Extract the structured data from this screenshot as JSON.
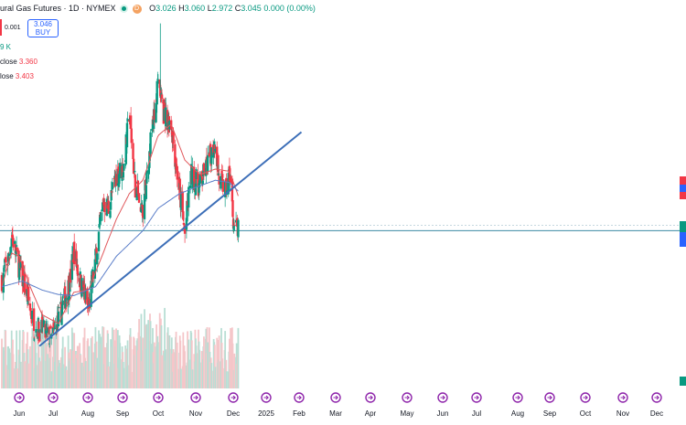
{
  "legend": {
    "title": "ural Gas Futures · 1D · NYMEX",
    "ohlc": [
      {
        "k": "O",
        "v": "3.026"
      },
      {
        "k": "H",
        "v": "3.060"
      },
      {
        "k": "L",
        "v": "2.972"
      },
      {
        "k": "C",
        "v": "3.045"
      }
    ],
    "change": "0.000 (0.00%)",
    "d_badge": "D"
  },
  "trade": {
    "spread": "0.001",
    "buy_price": "3.046",
    "buy_label": "BUY"
  },
  "volume_label": "9 K",
  "ma_rows": [
    {
      "name": "close",
      "value": "3.360",
      "color": "#f23645"
    },
    {
      "name": "lose",
      "value": "3.403",
      "color": "#f23645"
    }
  ],
  "colors": {
    "up": "#089981",
    "down": "#f23645",
    "ma_fast": "#e0575b",
    "ma_slow": "#5b7ec9",
    "trend": "#3d6fb8",
    "hline": "#3b8aa3",
    "accent": "#2962ff",
    "event_icon": "#8e24aa"
  },
  "icons": [
    "green-dot-icon",
    "orange-d-icon",
    "event-icon"
  ],
  "chart_data": {
    "type": "candlestick",
    "symbol_title": "ural Gas Futures · 1D · NYMEX",
    "x_labels": [
      "Jun",
      "Jul",
      "Aug",
      "Sep",
      "Oct",
      "Nov",
      "Dec",
      "2025",
      "Feb",
      "Mar",
      "Apr",
      "May",
      "Jun",
      "Jul",
      "Aug",
      "Sep",
      "Oct",
      "Nov",
      "Dec"
    ],
    "y_visible_range": [
      1.9,
      4.9
    ],
    "keyframes": [
      {
        "date": "2024-05-24",
        "close": 2.62
      },
      {
        "date": "2024-06-05",
        "close": 2.8
      },
      {
        "date": "2024-06-11",
        "close": 3.02
      },
      {
        "date": "2024-06-25",
        "close": 2.72
      },
      {
        "date": "2024-07-08",
        "close": 2.5
      },
      {
        "date": "2024-07-22",
        "close": 2.2
      },
      {
        "date": "2024-08-06",
        "close": 2.16
      },
      {
        "date": "2024-08-22",
        "close": 2.07
      },
      {
        "date": "2024-09-05",
        "close": 2.25
      },
      {
        "date": "2024-09-26",
        "close": 2.6
      },
      {
        "date": "2024-10-03",
        "close": 2.88
      },
      {
        "date": "2024-10-14",
        "close": 2.62
      },
      {
        "date": "2024-10-30",
        "close": 2.35
      },
      {
        "date": "2024-11-12",
        "close": 2.8
      },
      {
        "date": "2024-11-26",
        "close": 3.3
      },
      {
        "date": "2024-12-06",
        "close": 3.25
      },
      {
        "date": "2024-12-20",
        "close": 3.55
      },
      {
        "date": "2025-01-03",
        "close": 3.62
      },
      {
        "date": "2025-01-13",
        "close": 4.1
      },
      {
        "date": "2025-01-24",
        "close": 3.45
      },
      {
        "date": "2025-02-07",
        "close": 3.22
      },
      {
        "date": "2025-02-21",
        "close": 3.85
      },
      {
        "date": "2025-03-07",
        "close": 4.35
      },
      {
        "date": "2025-03-17",
        "close": 4.1
      },
      {
        "date": "2025-03-31",
        "close": 4.0
      },
      {
        "date": "2025-04-15",
        "close": 3.4
      },
      {
        "date": "2025-04-25",
        "close": 3.02
      },
      {
        "date": "2025-05-06",
        "close": 3.55
      },
      {
        "date": "2025-05-22",
        "close": 3.45
      },
      {
        "date": "2025-06-04",
        "close": 3.62
      },
      {
        "date": "2025-06-20",
        "close": 3.85
      },
      {
        "date": "2025-06-27",
        "close": 3.5
      },
      {
        "date": "2025-07-09",
        "close": 3.4
      },
      {
        "date": "2025-07-16",
        "close": 3.55
      },
      {
        "date": "2025-07-24",
        "close": 3.1
      },
      {
        "date": "2025-08-01",
        "close": 3.045
      }
    ],
    "ma_fast_keyframes": [
      {
        "date": "2024-05-24",
        "v": 2.55
      },
      {
        "date": "2024-06-11",
        "v": 2.85
      },
      {
        "date": "2024-06-25",
        "v": 2.82
      },
      {
        "date": "2024-07-15",
        "v": 2.55
      },
      {
        "date": "2024-08-06",
        "v": 2.3
      },
      {
        "date": "2024-09-05",
        "v": 2.22
      },
      {
        "date": "2024-10-03",
        "v": 2.5
      },
      {
        "date": "2024-10-30",
        "v": 2.52
      },
      {
        "date": "2024-11-26",
        "v": 2.85
      },
      {
        "date": "2024-12-20",
        "v": 3.15
      },
      {
        "date": "2025-01-13",
        "v": 3.38
      },
      {
        "date": "2025-02-07",
        "v": 3.5
      },
      {
        "date": "2025-03-07",
        "v": 3.9
      },
      {
        "date": "2025-03-31",
        "v": 4.0
      },
      {
        "date": "2025-04-25",
        "v": 3.68
      },
      {
        "date": "2025-05-22",
        "v": 3.55
      },
      {
        "date": "2025-06-20",
        "v": 3.6
      },
      {
        "date": "2025-07-16",
        "v": 3.58
      },
      {
        "date": "2025-08-01",
        "v": 3.36
      }
    ],
    "ma_slow_keyframes": [
      {
        "date": "2024-05-24",
        "v": 2.55
      },
      {
        "date": "2024-07-01",
        "v": 2.6
      },
      {
        "date": "2024-08-06",
        "v": 2.52
      },
      {
        "date": "2024-09-05",
        "v": 2.48
      },
      {
        "date": "2024-10-03",
        "v": 2.47
      },
      {
        "date": "2024-11-12",
        "v": 2.55
      },
      {
        "date": "2024-12-20",
        "v": 2.82
      },
      {
        "date": "2025-02-07",
        "v": 3.05
      },
      {
        "date": "2025-03-07",
        "v": 3.25
      },
      {
        "date": "2025-04-15",
        "v": 3.38
      },
      {
        "date": "2025-05-22",
        "v": 3.45
      },
      {
        "date": "2025-06-20",
        "v": 3.5
      },
      {
        "date": "2025-07-16",
        "v": 3.48
      },
      {
        "date": "2025-08-01",
        "v": 3.403
      }
    ],
    "trendline": {
      "start": {
        "date": "2024-08-01",
        "price": 2.02
      },
      "end": {
        "date": "2025-11-25",
        "price": 3.93
      }
    },
    "horizontal_level": 3.05,
    "last_close": 3.045
  }
}
